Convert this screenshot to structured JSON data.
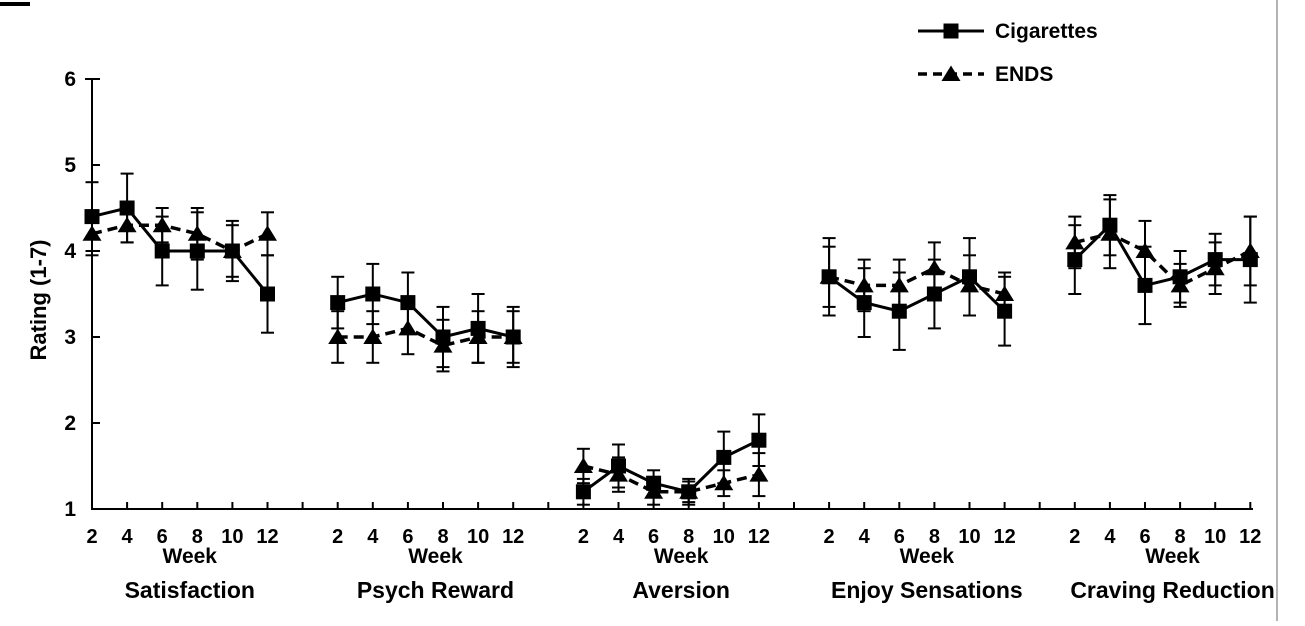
{
  "legend": {
    "items": [
      {
        "label": "Cigarettes",
        "marker": "square",
        "line": "solid"
      },
      {
        "label": "ENDS",
        "marker": "triangle",
        "line": "dashed"
      }
    ]
  },
  "axes": {
    "y_label": "Rating (1-7)",
    "y_tick_labels": [
      "1",
      "2",
      "3",
      "4",
      "5",
      "6"
    ],
    "x_label": "Week",
    "x_tick_labels": [
      "2",
      "4",
      "6",
      "8",
      "10",
      "12"
    ]
  },
  "colors": {
    "ink": "#000000",
    "background": "#ffffff",
    "scan_edge": "#b3b3b3"
  },
  "chart_data": {
    "type": "line",
    "title": "",
    "ylabel": "Rating (1-7)",
    "xlabel": "Week",
    "ylim": [
      1,
      6
    ],
    "y_ticks": [
      1,
      2,
      3,
      4,
      5,
      6
    ],
    "x": [
      2,
      4,
      6,
      8,
      10,
      12
    ],
    "grid": false,
    "legend_position": "top-right",
    "error_bars": true,
    "panels": [
      {
        "title": "Satisfaction",
        "series": [
          {
            "name": "Cigarettes",
            "marker": "square",
            "line": "solid",
            "values": [
              4.4,
              4.5,
              4.0,
              4.0,
              4.0,
              3.5
            ],
            "errors": [
              0.4,
              0.4,
              0.4,
              0.45,
              0.35,
              0.45
            ]
          },
          {
            "name": "ENDS",
            "marker": "triangle",
            "line": "dashed",
            "values": [
              4.2,
              4.3,
              4.3,
              4.2,
              4.0,
              4.2
            ],
            "errors": [
              0.25,
              0.2,
              0.2,
              0.3,
              0.3,
              0.25
            ]
          }
        ]
      },
      {
        "title": "Psych Reward",
        "series": [
          {
            "name": "Cigarettes",
            "marker": "square",
            "line": "solid",
            "values": [
              3.4,
              3.5,
              3.4,
              3.0,
              3.1,
              3.0
            ],
            "errors": [
              0.3,
              0.35,
              0.35,
              0.35,
              0.4,
              0.35
            ]
          },
          {
            "name": "ENDS",
            "marker": "triangle",
            "line": "dashed",
            "values": [
              3.0,
              3.0,
              3.1,
              2.9,
              3.0,
              3.0
            ],
            "errors": [
              0.3,
              0.3,
              0.3,
              0.3,
              0.3,
              0.3
            ]
          }
        ]
      },
      {
        "title": "Aversion",
        "series": [
          {
            "name": "Cigarettes",
            "marker": "square",
            "line": "solid",
            "values": [
              1.2,
              1.5,
              1.3,
              1.2,
              1.6,
              1.8
            ],
            "errors": [
              0.15,
              0.25,
              0.15,
              0.12,
              0.3,
              0.3
            ]
          },
          {
            "name": "ENDS",
            "marker": "triangle",
            "line": "dashed",
            "values": [
              1.5,
              1.4,
              1.2,
              1.2,
              1.3,
              1.4
            ],
            "errors": [
              0.2,
              0.2,
              0.15,
              0.15,
              0.15,
              0.25
            ]
          }
        ]
      },
      {
        "title": "Enjoy Sensations",
        "series": [
          {
            "name": "Cigarettes",
            "marker": "square",
            "line": "solid",
            "values": [
              3.7,
              3.4,
              3.3,
              3.5,
              3.7,
              3.3
            ],
            "errors": [
              0.45,
              0.4,
              0.45,
              0.4,
              0.45,
              0.4
            ]
          },
          {
            "name": "ENDS",
            "marker": "triangle",
            "line": "dashed",
            "values": [
              3.7,
              3.6,
              3.6,
              3.8,
              3.6,
              3.5
            ],
            "errors": [
              0.35,
              0.3,
              0.3,
              0.3,
              0.35,
              0.25
            ]
          }
        ]
      },
      {
        "title": "Craving Reduction",
        "series": [
          {
            "name": "Cigarettes",
            "marker": "square",
            "line": "solid",
            "values": [
              3.9,
              4.3,
              3.6,
              3.7,
              3.9,
              3.9
            ],
            "errors": [
              0.4,
              0.35,
              0.45,
              0.3,
              0.3,
              0.5
            ]
          },
          {
            "name": "ENDS",
            "marker": "triangle",
            "line": "dashed",
            "values": [
              4.1,
              4.2,
              4.0,
              3.6,
              3.8,
              4.0
            ],
            "errors": [
              0.3,
              0.4,
              0.35,
              0.25,
              0.3,
              0.4
            ]
          }
        ]
      }
    ]
  }
}
